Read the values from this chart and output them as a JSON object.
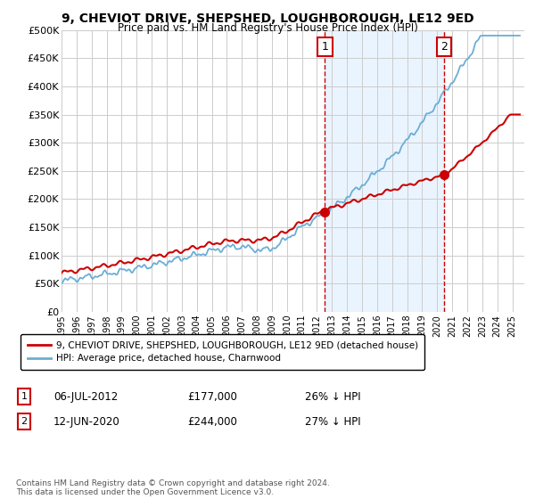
{
  "title": "9, CHEVIOT DRIVE, SHEPSHED, LOUGHBOROUGH, LE12 9ED",
  "subtitle": "Price paid vs. HM Land Registry's House Price Index (HPI)",
  "ylim": [
    0,
    500000
  ],
  "yticks": [
    0,
    50000,
    100000,
    150000,
    200000,
    250000,
    300000,
    350000,
    400000,
    450000,
    500000
  ],
  "ytick_labels": [
    "£0",
    "£50K",
    "£100K",
    "£150K",
    "£200K",
    "£250K",
    "£300K",
    "£350K",
    "£400K",
    "£450K",
    "£500K"
  ],
  "xlim_start": 1995.0,
  "xlim_end": 2025.8,
  "xticks": [
    1995,
    1996,
    1997,
    1998,
    1999,
    2000,
    2001,
    2002,
    2003,
    2004,
    2005,
    2006,
    2007,
    2008,
    2009,
    2010,
    2011,
    2012,
    2013,
    2014,
    2015,
    2016,
    2017,
    2018,
    2019,
    2020,
    2021,
    2022,
    2023,
    2024,
    2025
  ],
  "hpi_color": "#6aaed6",
  "price_color": "#cc0000",
  "marker1_x": 2012.52,
  "marker2_x": 2020.45,
  "marker1_price": 177000,
  "marker1_date": "06-JUL-2012",
  "marker1_hpi_diff": "26% ↓ HPI",
  "marker2_price": 244000,
  "marker2_date": "12-JUN-2020",
  "marker2_hpi_diff": "27% ↓ HPI",
  "legend_label_red": "9, CHEVIOT DRIVE, SHEPSHED, LOUGHBOROUGH, LE12 9ED (detached house)",
  "legend_label_blue": "HPI: Average price, detached house, Charnwood",
  "copyright_text": "Contains HM Land Registry data © Crown copyright and database right 2024.\nThis data is licensed under the Open Government Licence v3.0.",
  "background_color": "#ffffff",
  "grid_color": "#cccccc",
  "shade_color": "#ddeeff"
}
